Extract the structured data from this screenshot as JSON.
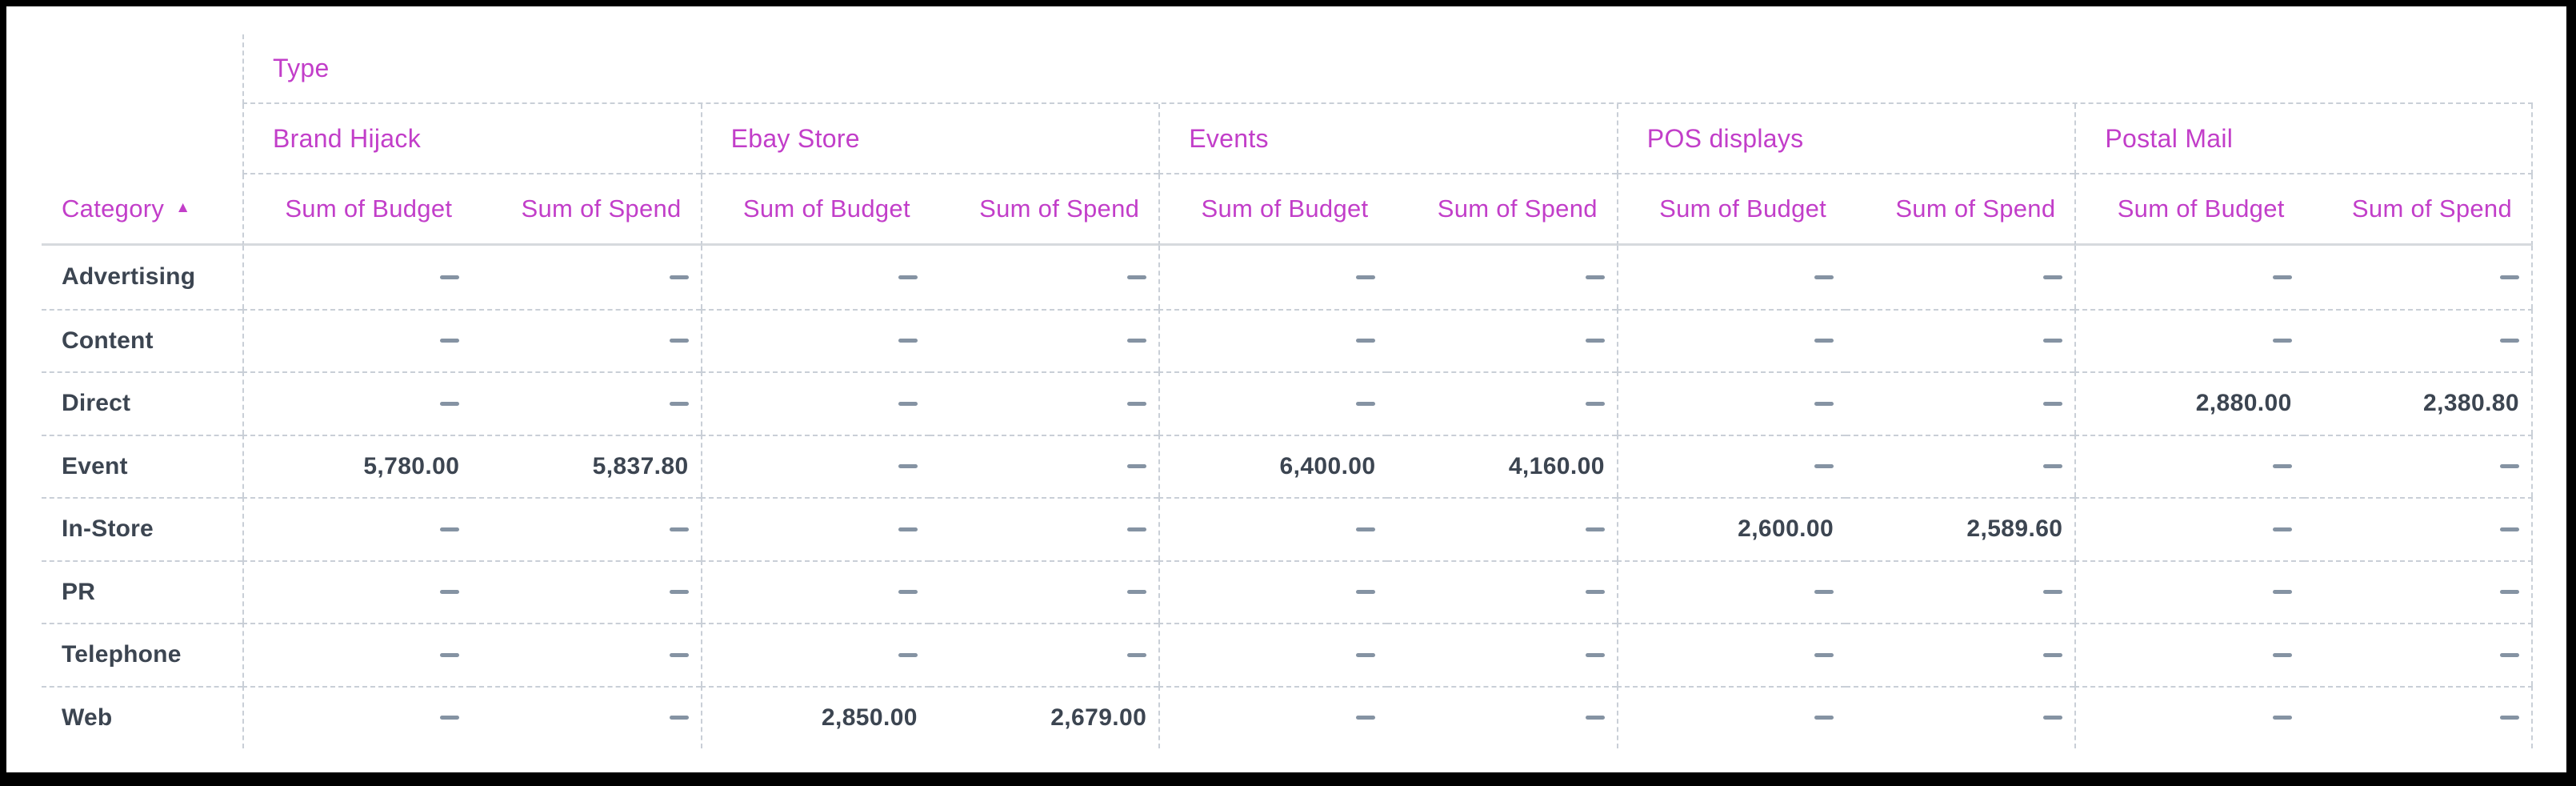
{
  "pivot_table": {
    "type_axis_label": "Type",
    "category_header": {
      "label": "Category",
      "sort_arrow": "▲",
      "sort_direction": "ascending"
    },
    "column_groups": [
      {
        "label": "Brand Hijack",
        "subcolumns": [
          "Sum of Budget",
          "Sum of Spend"
        ]
      },
      {
        "label": "Ebay Store",
        "subcolumns": [
          "Sum of Budget",
          "Sum of Spend"
        ]
      },
      {
        "label": "Events",
        "subcolumns": [
          "Sum of Budget",
          "Sum of Spend"
        ]
      },
      {
        "label": "POS displays",
        "subcolumns": [
          "Sum of Budget",
          "Sum of Spend"
        ]
      },
      {
        "label": "Postal Mail",
        "subcolumns": [
          "Sum of Budget",
          "Sum of Spend"
        ]
      }
    ],
    "empty_value_symbol": "–",
    "rows": [
      {
        "label": "Advertising",
        "values": [
          "–",
          "–",
          "–",
          "–",
          "–",
          "–",
          "–",
          "–",
          "–",
          "–"
        ]
      },
      {
        "label": "Content",
        "values": [
          "–",
          "–",
          "–",
          "–",
          "–",
          "–",
          "–",
          "–",
          "–",
          "–"
        ]
      },
      {
        "label": "Direct",
        "values": [
          "–",
          "–",
          "–",
          "–",
          "–",
          "–",
          "–",
          "–",
          "2,880.00",
          "2,380.80"
        ]
      },
      {
        "label": "Event",
        "values": [
          "5,780.00",
          "5,837.80",
          "–",
          "–",
          "6,400.00",
          "4,160.00",
          "–",
          "–",
          "–",
          "–"
        ]
      },
      {
        "label": "In-Store",
        "values": [
          "–",
          "–",
          "–",
          "–",
          "–",
          "–",
          "2,600.00",
          "2,589.60",
          "–",
          "–"
        ]
      },
      {
        "label": "PR",
        "values": [
          "–",
          "–",
          "–",
          "–",
          "–",
          "–",
          "–",
          "–",
          "–",
          "–"
        ]
      },
      {
        "label": "Telephone",
        "values": [
          "–",
          "–",
          "–",
          "–",
          "–",
          "–",
          "–",
          "–",
          "–",
          "–"
        ]
      },
      {
        "label": "Web",
        "values": [
          "–",
          "–",
          "2,850.00",
          "2,679.00",
          "–",
          "–",
          "–",
          "–",
          "–",
          "–"
        ]
      }
    ],
    "colors": {
      "header_magenta": "#c23ec9",
      "text_dark": "#3c4551",
      "empty_dash": "#8593a3",
      "grid_dashed": "#c9cfd7",
      "grid_solid": "#d6dade",
      "frame_black": "#000000",
      "background": "#ffffff"
    }
  }
}
